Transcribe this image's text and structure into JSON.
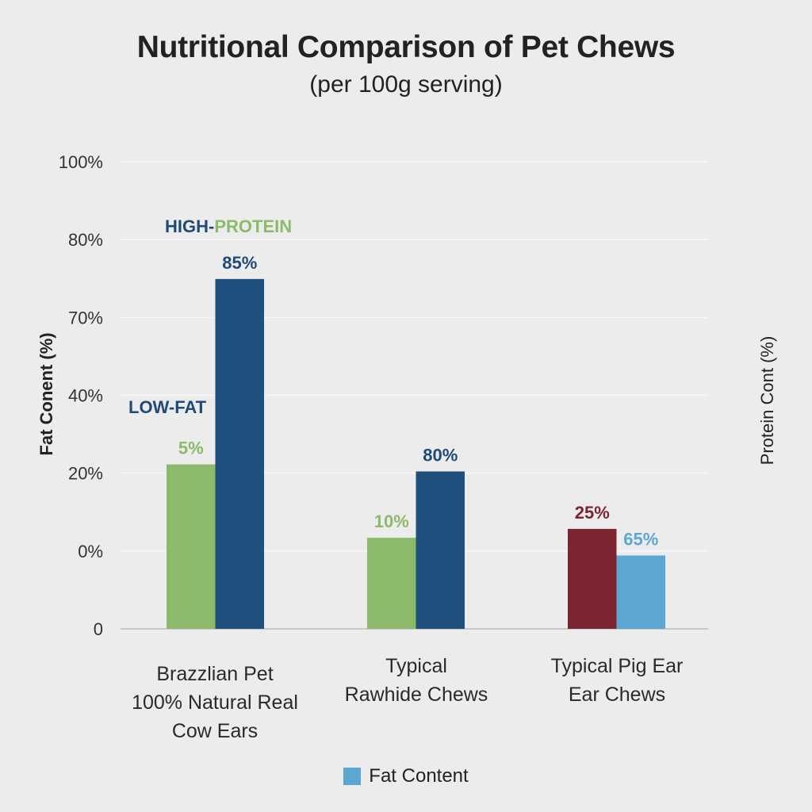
{
  "chart_data": {
    "type": "bar",
    "title": "Nutritional Comparison of Pet Chews",
    "subtitle": "(per 100g serving)",
    "ylabel": "Fat Conent (%)",
    "ylabel_right": "Protein Cont (%)",
    "xlabel": "",
    "y_tick_labels": [
      "0",
      "0%",
      "20%",
      "40%",
      "70%",
      "80%",
      "100%"
    ],
    "grid": true,
    "categories": [
      [
        "Brazzlian Pet",
        "100% Natural Real",
        "Cow Ears"
      ],
      [
        "Typical",
        "Rawhide Chews"
      ],
      [
        "Typical Pig Ear",
        "Ear Chews"
      ]
    ],
    "bars": [
      {
        "category_index": 0,
        "series": "fat",
        "label": "5%",
        "value": 5,
        "visual_level": 0.352,
        "color": "#8dba6a",
        "label_color": "#8dba6a"
      },
      {
        "category_index": 0,
        "series": "protein",
        "label": "85%",
        "value": 85,
        "visual_level": 0.749,
        "color": "#1f507e",
        "label_color": "#1f4a78"
      },
      {
        "category_index": 1,
        "series": "fat",
        "label": "10%",
        "value": 10,
        "visual_level": 0.195,
        "color": "#8dba6a",
        "label_color": "#8dba6a"
      },
      {
        "category_index": 1,
        "series": "protein",
        "label": "80%",
        "value": 80,
        "visual_level": 0.337,
        "color": "#1f507e",
        "label_color": "#1f4a78"
      },
      {
        "category_index": 2,
        "series": "fat",
        "label": "25%",
        "value": 25,
        "visual_level": 0.214,
        "color": "#7b2530",
        "label_color": "#7b2530"
      },
      {
        "category_index": 2,
        "series": "protein",
        "label": "65%",
        "value": 65,
        "visual_level": 0.157,
        "color": "#5ca6d2",
        "label_color": "#5ca6d2"
      }
    ],
    "annotations": [
      {
        "parts": [
          {
            "text": "HIGH-",
            "color": "#1f4a78"
          },
          {
            "text": "PROTEIN",
            "color": "#8dba6a"
          }
        ]
      },
      {
        "parts": [
          {
            "text": "LOW-FAT",
            "color": "#1f4a78"
          }
        ]
      }
    ],
    "legend": {
      "position": "bottom-center",
      "entries": [
        {
          "label": "Fat Content",
          "color": "#5ca6d2"
        }
      ]
    }
  }
}
